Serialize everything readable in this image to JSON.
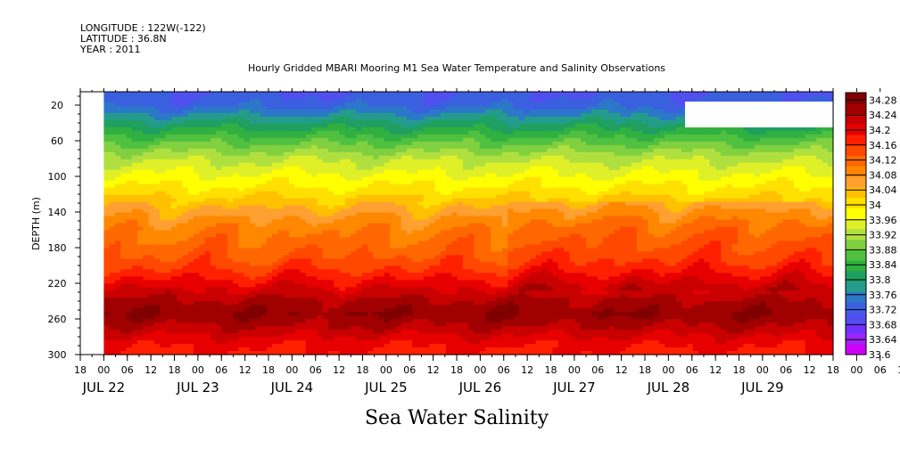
{
  "header": {
    "longitude": "LONGITUDE : 122W(-122)",
    "latitude": "LATITUDE : 36.8N",
    "year": "YEAR : 2011"
  },
  "chart_data": {
    "type": "heatmap",
    "title": "Hourly Gridded MBARI Mooring M1 Sea Water Temperature and Salinity Observations",
    "xlabel": "Sea Water Salinity",
    "ylabel": "DEPTH (m)",
    "ylim": [
      300,
      5
    ],
    "y_ticks": [
      20,
      60,
      100,
      140,
      180,
      220,
      260,
      300
    ],
    "x_hour_ticks": [
      "18",
      "00",
      "06",
      "12",
      "18",
      "00",
      "06",
      "12",
      "18",
      "00",
      "06",
      "12",
      "18",
      "00",
      "06",
      "12",
      "18",
      "00",
      "06",
      "12",
      "18",
      "00",
      "06",
      "12",
      "18",
      "00",
      "06",
      "12",
      "18",
      "00",
      "06",
      "12",
      "18",
      "00",
      "06",
      "12",
      "18"
    ],
    "x_day_labels": [
      "JUL 22",
      "JUL 23",
      "JUL 24",
      "JUL 25",
      "JUL 26",
      "JUL 27",
      "JUL 28",
      "JUL 29"
    ],
    "colorbar": {
      "min": 33.6,
      "max": 34.3,
      "step": 0.02,
      "labels": [
        "34.28",
        "34.24",
        "34.2",
        "34.16",
        "34.12",
        "34.08",
        "34.04",
        "34",
        "33.96",
        "33.92",
        "33.88",
        "33.84",
        "33.8",
        "33.76",
        "33.72",
        "33.68",
        "33.64",
        "33.6"
      ],
      "colors": [
        "#d000f8",
        "#a024f8",
        "#7030ff",
        "#5050f0",
        "#3a60e0",
        "#2c78c8",
        "#249c8c",
        "#20a060",
        "#30b040",
        "#50c040",
        "#80d040",
        "#b0e040",
        "#e0f028",
        "#ffff00",
        "#ffe000",
        "#ffc000",
        "#ffa030",
        "#ff8800",
        "#ff6800",
        "#ff4800",
        "#ff2000",
        "#e80000",
        "#c80000",
        "#a00000",
        "#800000"
      ]
    },
    "depth_profile": [
      {
        "depth": 5,
        "value": 33.71
      },
      {
        "depth": 20,
        "value": 33.73
      },
      {
        "depth": 40,
        "value": 33.8
      },
      {
        "depth": 60,
        "value": 33.87
      },
      {
        "depth": 80,
        "value": 33.93
      },
      {
        "depth": 100,
        "value": 33.97
      },
      {
        "depth": 120,
        "value": 34.01
      },
      {
        "depth": 140,
        "value": 34.06
      },
      {
        "depth": 160,
        "value": 34.1
      },
      {
        "depth": 180,
        "value": 34.12
      },
      {
        "depth": 200,
        "value": 34.15
      },
      {
        "depth": 220,
        "value": 34.2
      },
      {
        "depth": 240,
        "value": 34.25
      },
      {
        "depth": 255,
        "value": 34.27
      },
      {
        "depth": 270,
        "value": 34.24
      },
      {
        "depth": 285,
        "value": 34.2
      },
      {
        "depth": 300,
        "value": 34.18
      }
    ],
    "data_start_hour": 6,
    "hours_span": 186
  }
}
